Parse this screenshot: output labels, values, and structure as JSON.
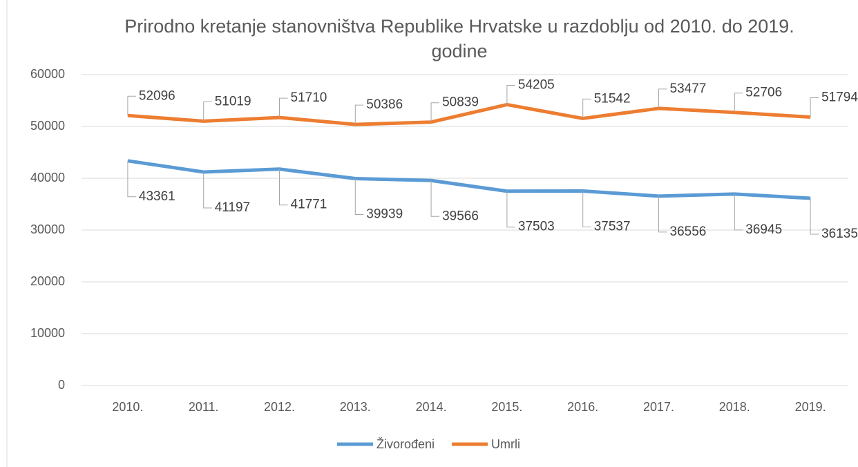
{
  "chart_data": {
    "type": "line",
    "title": "Prirodno kretanje stanovništva Republike Hrvatske u razdoblju od 2010. do 2019. godine",
    "categories": [
      "2010.",
      "2011.",
      "2012.",
      "2013.",
      "2014.",
      "2015.",
      "2016.",
      "2017.",
      "2018.",
      "2019."
    ],
    "series": [
      {
        "name": "Živorođeni",
        "color": "#5b9bd5",
        "values": [
          43361,
          41197,
          41771,
          39939,
          39566,
          37503,
          37537,
          36556,
          36945,
          36135
        ]
      },
      {
        "name": "Umrli",
        "color": "#ed7d31",
        "values": [
          52096,
          51019,
          51710,
          50386,
          50839,
          54205,
          51542,
          53477,
          52706,
          51794
        ]
      }
    ],
    "ylim": [
      0,
      60000
    ],
    "yticks": [
      0,
      10000,
      20000,
      30000,
      40000,
      50000,
      60000
    ],
    "grid": true,
    "legend": "bottom",
    "data_labels": true
  }
}
